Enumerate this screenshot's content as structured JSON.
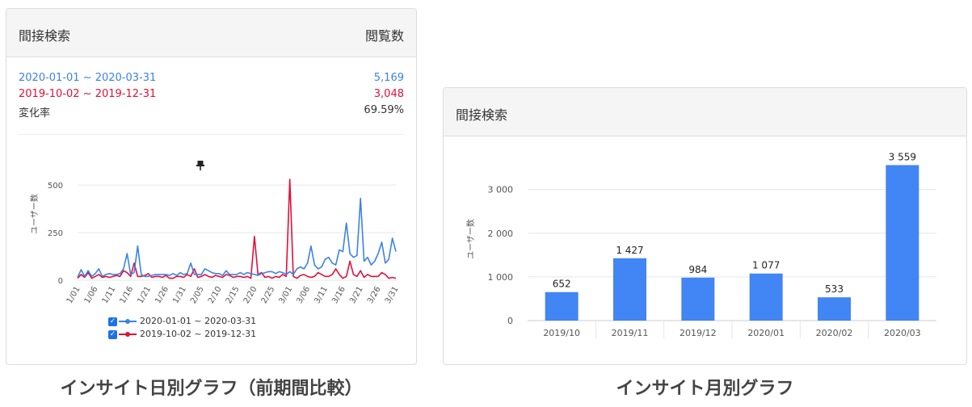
{
  "left_panel": {
    "title": "間接検索",
    "right_title": "閲覧数",
    "rows": [
      {
        "label": "2020-01-01 ~ 2020-03-31",
        "value": "5,169",
        "color": "#3b82e6"
      },
      {
        "label": "2019-10-02 ~ 2019-12-31",
        "value": "3,048",
        "color": "#e0103a"
      },
      {
        "label": "変化率",
        "value": "69.59%",
        "color": "#333333"
      }
    ],
    "pin_icon": "pushpin-icon",
    "legend": [
      {
        "label": "2020-01-01 ~ 2020-03-31",
        "color": "#3b82e6"
      },
      {
        "label": "2019-10-02 ~ 2019-12-31",
        "color": "#e0103a"
      }
    ],
    "caption": "インサイト日別グラフ（前期間比較）"
  },
  "right_panel": {
    "title": "間接検索",
    "caption": "インサイト月別グラフ"
  },
  "chart_data": [
    {
      "type": "line",
      "ylabel": "ユーザー数",
      "ylim": [
        0,
        560
      ],
      "yticks": [
        0,
        250,
        500
      ],
      "x_tick_labels": [
        "1/01",
        "1/06",
        "1/11",
        "1/16",
        "1/21",
        "1/26",
        "1/31",
        "2/05",
        "2/10",
        "2/15",
        "2/20",
        "2/25",
        "3/01",
        "3/06",
        "3/11",
        "3/16",
        "3/21",
        "3/26",
        "3/31"
      ],
      "grid": true,
      "legend_position": "bottom",
      "series": [
        {
          "name": "2020-01-01 ~ 2020-03-31",
          "color": "#3b82e6",
          "values": [
            15,
            55,
            20,
            50,
            20,
            35,
            60,
            20,
            30,
            35,
            30,
            30,
            35,
            60,
            140,
            30,
            40,
            180,
            30,
            20,
            20,
            25,
            30,
            30,
            30,
            30,
            25,
            35,
            25,
            40,
            30,
            35,
            90,
            30,
            30,
            30,
            60,
            50,
            40,
            35,
            35,
            25,
            50,
            30,
            30,
            30,
            40,
            30,
            40,
            35,
            30,
            25,
            35,
            40,
            45,
            45,
            35,
            45,
            40,
            30,
            45,
            30,
            60,
            70,
            60,
            90,
            180,
            80,
            60,
            70,
            110,
            120,
            90,
            80,
            160,
            150,
            300,
            140,
            120,
            130,
            430,
            100,
            120,
            80,
            100,
            140,
            200,
            90,
            110,
            220,
            150
          ]
        },
        {
          "name": "2019-10-02 ~ 2019-12-31",
          "color": "#e0103a",
          "values": [
            10,
            30,
            15,
            40,
            10,
            20,
            30,
            15,
            20,
            15,
            20,
            25,
            20,
            50,
            40,
            20,
            90,
            20,
            20,
            25,
            35,
            15,
            20,
            20,
            15,
            25,
            10,
            10,
            20,
            20,
            15,
            30,
            20,
            60,
            15,
            20,
            30,
            20,
            15,
            25,
            20,
            15,
            30,
            25,
            15,
            20,
            20,
            15,
            20,
            10,
            230,
            30,
            40,
            15,
            20,
            10,
            20,
            15,
            30,
            20,
            530,
            20,
            10,
            25,
            30,
            20,
            15,
            20,
            40,
            30,
            20,
            20,
            30,
            60,
            30,
            10,
            20,
            100,
            30,
            20,
            50,
            15,
            30,
            20,
            20,
            20,
            40,
            30,
            10,
            15,
            10
          ]
        }
      ]
    },
    {
      "type": "bar",
      "ylabel": "ユーザー数",
      "categories": [
        "2019/10",
        "2019/11",
        "2019/12",
        "2020/01",
        "2020/02",
        "2020/03"
      ],
      "values": [
        652,
        1427,
        984,
        1077,
        533,
        3559
      ],
      "value_labels": [
        "652",
        "1 427",
        "984",
        "1 077",
        "533",
        "3 559"
      ],
      "yticks": [
        0,
        1000,
        2000,
        3000
      ],
      "ytick_labels": [
        "0",
        "1 000",
        "2 000",
        "3 000"
      ],
      "ylim": [
        0,
        3700
      ],
      "bar_color": "#4285f4",
      "grid": true
    }
  ]
}
